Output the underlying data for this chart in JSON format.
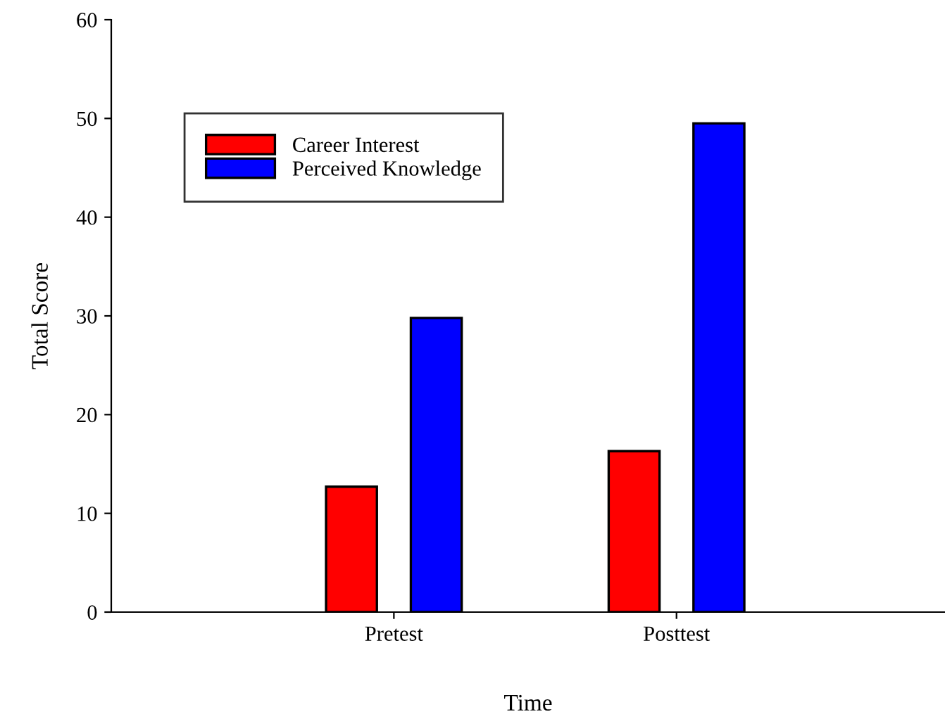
{
  "chart_data": {
    "type": "bar",
    "xlabel": "Time",
    "ylabel": "Total Score",
    "categories": [
      "Pretest",
      "Posttest"
    ],
    "series": [
      {
        "name": "Career Interest",
        "color": "#ff0000",
        "values": [
          12.7,
          16.3
        ]
      },
      {
        "name": "Perceived Knowledge",
        "color": "#0000ff",
        "values": [
          29.8,
          49.5
        ]
      }
    ],
    "ylim": [
      0,
      60
    ],
    "yticks": [
      0,
      10,
      20,
      30,
      40,
      50,
      60
    ],
    "grid": false,
    "legend": "top left"
  }
}
